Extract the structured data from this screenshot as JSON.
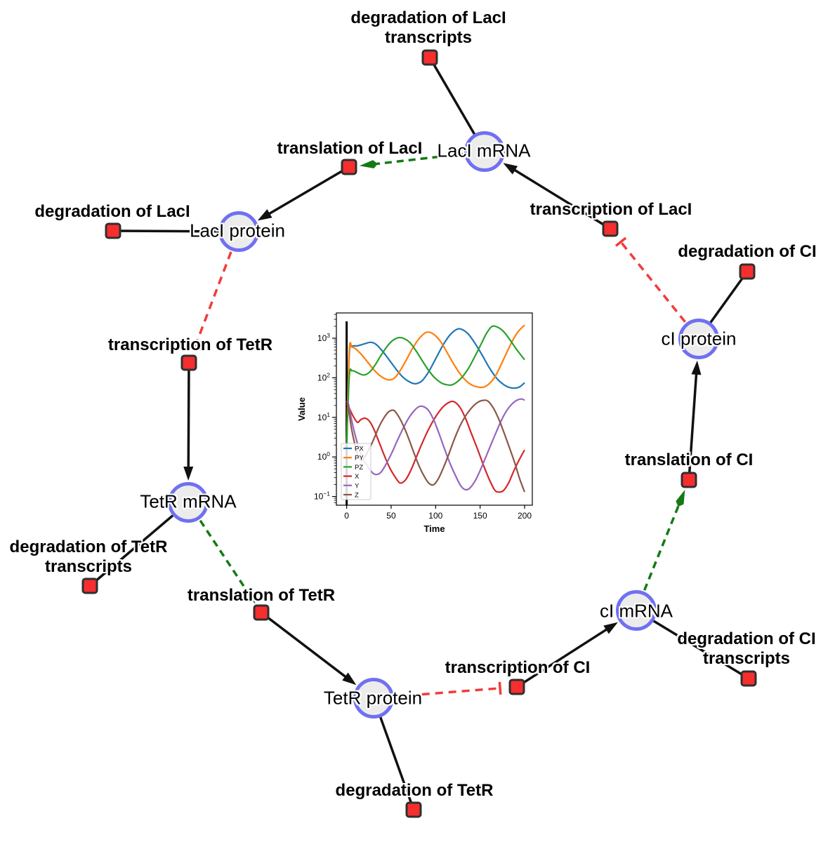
{
  "figure": {
    "description": "Repressilator gene regulatory network with simulation inset"
  },
  "diagram": {
    "species_nodes": [
      {
        "id": "lacI_mRNA",
        "label": "LacI mRNA"
      },
      {
        "id": "lacI_protein",
        "label": "LacI protein"
      },
      {
        "id": "tetR_mRNA",
        "label": "TetR mRNA"
      },
      {
        "id": "tetR_protein",
        "label": "TetR protein"
      },
      {
        "id": "cI_mRNA",
        "label": "cI mRNA"
      },
      {
        "id": "cI_protein",
        "label": "cI protein"
      }
    ],
    "reaction_nodes": [
      {
        "id": "deg_lacI_tx",
        "label": "degradation of LacI transcripts",
        "label_lines": [
          "degradation of LacI",
          "transcripts"
        ]
      },
      {
        "id": "transl_lacI",
        "label": "translation of LacI",
        "label_lines": [
          "translation of LacI"
        ]
      },
      {
        "id": "deg_lacI",
        "label": "degradation of LacI",
        "label_lines": [
          "degradation of LacI"
        ]
      },
      {
        "id": "tx_lacI",
        "label": "transcription of LacI",
        "label_lines": [
          "transcription of LacI"
        ]
      },
      {
        "id": "deg_cI",
        "label": "degradation of CI",
        "label_lines": [
          "degradation of CI"
        ]
      },
      {
        "id": "tx_tetR",
        "label": "transcription of TetR",
        "label_lines": [
          "transcription of TetR"
        ]
      },
      {
        "id": "deg_tetR_tx",
        "label": "degradation of TetR transcripts",
        "label_lines": [
          "degradation of TetR",
          "transcripts"
        ]
      },
      {
        "id": "transl_tetR",
        "label": "translation of TetR",
        "label_lines": [
          "translation of TetR"
        ]
      },
      {
        "id": "transl_cI",
        "label": "translation of CI",
        "label_lines": [
          "translation of CI"
        ]
      },
      {
        "id": "deg_cI_tx",
        "label": "degradation of CI transcripts",
        "label_lines": [
          "degradation of CI",
          "transcripts"
        ]
      },
      {
        "id": "tx_cI",
        "label": "transcription of CI",
        "label_lines": [
          "transcription of CI"
        ]
      },
      {
        "id": "deg_tetR",
        "label": "degradation of TetR",
        "label_lines": [
          "degradation of TetR"
        ]
      }
    ],
    "edges": [
      {
        "source": "lacI_mRNA",
        "target": "deg_lacI_tx",
        "type": "consumption"
      },
      {
        "source": "tx_lacI",
        "target": "lacI_mRNA",
        "type": "production"
      },
      {
        "source": "lacI_mRNA",
        "target": "transl_lacI",
        "type": "catalysis"
      },
      {
        "source": "transl_lacI",
        "target": "lacI_protein",
        "type": "production"
      },
      {
        "source": "lacI_protein",
        "target": "deg_lacI",
        "type": "consumption"
      },
      {
        "source": "lacI_protein",
        "target": "tx_tetR",
        "type": "inhibition"
      },
      {
        "source": "tx_tetR",
        "target": "tetR_mRNA",
        "type": "production"
      },
      {
        "source": "tetR_mRNA",
        "target": "deg_tetR_tx",
        "type": "consumption"
      },
      {
        "source": "tetR_mRNA",
        "target": "transl_tetR",
        "type": "catalysis"
      },
      {
        "source": "transl_tetR",
        "target": "tetR_protein",
        "type": "production"
      },
      {
        "source": "tetR_protein",
        "target": "deg_tetR",
        "type": "consumption"
      },
      {
        "source": "tetR_protein",
        "target": "tx_cI",
        "type": "inhibition"
      },
      {
        "source": "tx_cI",
        "target": "cI_mRNA",
        "type": "production"
      },
      {
        "source": "cI_mRNA",
        "target": "deg_cI_tx",
        "type": "consumption"
      },
      {
        "source": "cI_mRNA",
        "target": "transl_cI",
        "type": "catalysis"
      },
      {
        "source": "transl_cI",
        "target": "cI_protein",
        "type": "production"
      },
      {
        "source": "cI_protein",
        "target": "deg_cI",
        "type": "consumption"
      },
      {
        "source": "cI_protein",
        "target": "tx_lacI",
        "type": "inhibition"
      }
    ],
    "colors": {
      "species_fill": "#ececec",
      "species_border": "#7070f2",
      "reaction_fill": "#f62e2e",
      "reaction_border": "#2f2f2f",
      "consumption_edge": "#111111",
      "production_edge": "#111111",
      "catalysis_edge": "#147a14",
      "inhibition_edge": "#f23b3b"
    }
  },
  "chart_data": {
    "type": "line",
    "title": "",
    "xlabel": "Time",
    "ylabel": "Value",
    "x_ticks": [
      0,
      50,
      100,
      150,
      200
    ],
    "y_tick_exponents": [
      3,
      2,
      1,
      0,
      -1
    ],
    "y_scale": "log",
    "xlim": [
      -11,
      209
    ],
    "ylim": [
      0.059,
      4400
    ],
    "grid": false,
    "legend_position": "lower left",
    "annotations": [
      "vertical black line at t=0"
    ],
    "series": [
      {
        "name": "PX",
        "color": "#1f77b4",
        "points": [
          [
            0,
            2
          ],
          [
            3,
            400
          ],
          [
            6,
            620
          ],
          [
            12,
            640
          ],
          [
            20,
            720
          ],
          [
            27,
            790
          ],
          [
            33,
            700
          ],
          [
            40,
            480
          ],
          [
            48,
            280
          ],
          [
            56,
            160
          ],
          [
            64,
            100
          ],
          [
            72,
            76
          ],
          [
            78,
            71
          ],
          [
            85,
            85
          ],
          [
            92,
            140
          ],
          [
            100,
            300
          ],
          [
            108,
            650
          ],
          [
            116,
            1200
          ],
          [
            124,
            1680
          ],
          [
            130,
            1650
          ],
          [
            137,
            1250
          ],
          [
            145,
            700
          ],
          [
            153,
            350
          ],
          [
            161,
            170
          ],
          [
            169,
            95
          ],
          [
            177,
            66
          ],
          [
            184,
            56
          ],
          [
            190,
            55
          ],
          [
            195,
            60
          ],
          [
            200,
            75
          ]
        ]
      },
      {
        "name": "PY",
        "color": "#ff7f0e",
        "points": [
          [
            0,
            2
          ],
          [
            3,
            480
          ],
          [
            6,
            590
          ],
          [
            10,
            540
          ],
          [
            16,
            400
          ],
          [
            23,
            260
          ],
          [
            30,
            165
          ],
          [
            37,
            115
          ],
          [
            43,
            95
          ],
          [
            48,
            88
          ],
          [
            54,
            100
          ],
          [
            60,
            150
          ],
          [
            67,
            280
          ],
          [
            74,
            550
          ],
          [
            81,
            950
          ],
          [
            88,
            1350
          ],
          [
            93,
            1420
          ],
          [
            99,
            1200
          ],
          [
            106,
            800
          ],
          [
            113,
            430
          ],
          [
            120,
            230
          ],
          [
            127,
            130
          ],
          [
            134,
            85
          ],
          [
            141,
            65
          ],
          [
            148,
            58
          ],
          [
            154,
            58
          ],
          [
            160,
            70
          ],
          [
            166,
            100
          ],
          [
            172,
            180
          ],
          [
            178,
            350
          ],
          [
            185,
            750
          ],
          [
            192,
            1400
          ],
          [
            200,
            2150
          ]
        ]
      },
      {
        "name": "PZ",
        "color": "#2ca02c",
        "points": [
          [
            0,
            2
          ],
          [
            3,
            110
          ],
          [
            6,
            150
          ],
          [
            10,
            142
          ],
          [
            15,
            125
          ],
          [
            20,
            118
          ],
          [
            26,
            140
          ],
          [
            32,
            210
          ],
          [
            38,
            350
          ],
          [
            45,
            600
          ],
          [
            51,
            850
          ],
          [
            58,
            1030
          ],
          [
            64,
            990
          ],
          [
            71,
            780
          ],
          [
            78,
            480
          ],
          [
            85,
            270
          ],
          [
            92,
            155
          ],
          [
            99,
            100
          ],
          [
            106,
            75
          ],
          [
            112,
            67
          ],
          [
            118,
            66
          ],
          [
            124,
            78
          ],
          [
            130,
            105
          ],
          [
            137,
            175
          ],
          [
            144,
            340
          ],
          [
            151,
            700
          ],
          [
            157,
            1300
          ],
          [
            163,
            1960
          ],
          [
            169,
            1930
          ],
          [
            176,
            1500
          ],
          [
            183,
            950
          ],
          [
            191,
            520
          ],
          [
            200,
            285
          ]
        ]
      },
      {
        "name": "X",
        "color": "#d62728",
        "points": [
          [
            0,
            22
          ],
          [
            3,
            17
          ],
          [
            7,
            11
          ],
          [
            12,
            7.5
          ],
          [
            16,
            8.8
          ],
          [
            21,
            9.5
          ],
          [
            26,
            7.8
          ],
          [
            31,
            4.8
          ],
          [
            37,
            2.2
          ],
          [
            43,
            1.0
          ],
          [
            49,
            0.5
          ],
          [
            55,
            0.3
          ],
          [
            60,
            0.22
          ],
          [
            66,
            0.26
          ],
          [
            72,
            0.45
          ],
          [
            78,
            0.95
          ],
          [
            84,
            2
          ],
          [
            90,
            4
          ],
          [
            97,
            8
          ],
          [
            104,
            14
          ],
          [
            110,
            20
          ],
          [
            117,
            25
          ],
          [
            122,
            24
          ],
          [
            128,
            17
          ],
          [
            134,
            9
          ],
          [
            140,
            4
          ],
          [
            147,
            1.6
          ],
          [
            154,
            0.6
          ],
          [
            160,
            0.28
          ],
          [
            166,
            0.15
          ],
          [
            170,
            0.13
          ],
          [
            176,
            0.14
          ],
          [
            182,
            0.22
          ],
          [
            188,
            0.45
          ],
          [
            194,
            0.85
          ],
          [
            200,
            1.5
          ]
        ]
      },
      {
        "name": "Y",
        "color": "#9467bd",
        "points": [
          [
            0,
            26
          ],
          [
            2,
            22
          ],
          [
            5,
            10
          ],
          [
            9,
            4
          ],
          [
            14,
            1.6
          ],
          [
            19,
            0.85
          ],
          [
            25,
            0.52
          ],
          [
            30,
            0.38
          ],
          [
            34,
            0.36
          ],
          [
            39,
            0.42
          ],
          [
            45,
            0.7
          ],
          [
            51,
            1.3
          ],
          [
            57,
            2.6
          ],
          [
            63,
            5
          ],
          [
            69,
            9
          ],
          [
            75,
            14
          ],
          [
            81,
            18.5
          ],
          [
            86,
            18.8
          ],
          [
            92,
            15
          ],
          [
            98,
            8.5
          ],
          [
            104,
            3.8
          ],
          [
            110,
            1.6
          ],
          [
            116,
            0.7
          ],
          [
            122,
            0.35
          ],
          [
            128,
            0.19
          ],
          [
            133,
            0.15
          ],
          [
            138,
            0.16
          ],
          [
            144,
            0.24
          ],
          [
            150,
            0.45
          ],
          [
            156,
            0.95
          ],
          [
            162,
            2
          ],
          [
            168,
            4.2
          ],
          [
            174,
            8.5
          ],
          [
            180,
            15
          ],
          [
            186,
            22
          ],
          [
            192,
            27.5
          ],
          [
            197,
            29
          ],
          [
            200,
            27
          ]
        ]
      },
      {
        "name": "Z",
        "color": "#8c564b",
        "points": [
          [
            0,
            26
          ],
          [
            2,
            18
          ],
          [
            5,
            6
          ],
          [
            9,
            2.2
          ],
          [
            13,
            1.0
          ],
          [
            17,
            0.85
          ],
          [
            21,
            1.05
          ],
          [
            26,
            1.7
          ],
          [
            31,
            3
          ],
          [
            36,
            5.5
          ],
          [
            41,
            9
          ],
          [
            46,
            13
          ],
          [
            50,
            15
          ],
          [
            54,
            14.5
          ],
          [
            59,
            10
          ],
          [
            64,
            6
          ],
          [
            70,
            2.8
          ],
          [
            76,
            1.2
          ],
          [
            82,
            0.55
          ],
          [
            88,
            0.3
          ],
          [
            93,
            0.21
          ],
          [
            98,
            0.2
          ],
          [
            103,
            0.28
          ],
          [
            109,
            0.55
          ],
          [
            115,
            1.2
          ],
          [
            121,
            2.8
          ],
          [
            128,
            6.5
          ],
          [
            135,
            12
          ],
          [
            142,
            19
          ],
          [
            148,
            24.5
          ],
          [
            154,
            27
          ],
          [
            159,
            25.5
          ],
          [
            165,
            17
          ],
          [
            171,
            9
          ],
          [
            177,
            4
          ],
          [
            183,
            1.7
          ],
          [
            189,
            0.7
          ],
          [
            194,
            0.3
          ],
          [
            200,
            0.13
          ]
        ]
      }
    ]
  }
}
